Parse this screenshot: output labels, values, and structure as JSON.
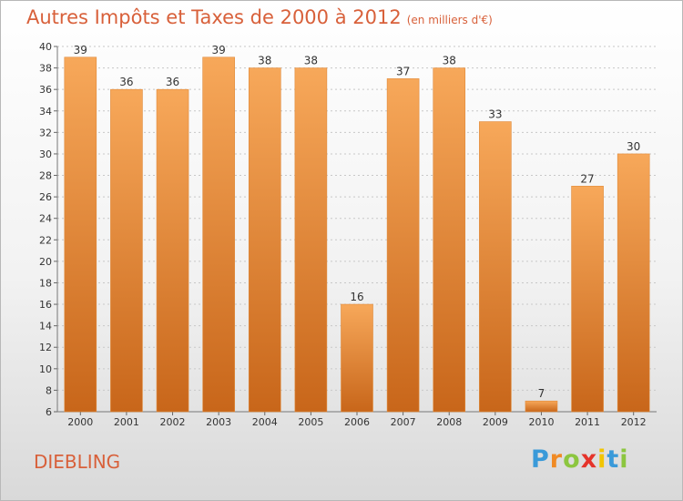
{
  "chart_data": {
    "type": "bar",
    "title": "Autres Impôts et Taxes de 2000 à 2012",
    "subtitle": "(en milliers d'€)",
    "categories": [
      "2000",
      "2001",
      "2002",
      "2003",
      "2004",
      "2005",
      "2006",
      "2007",
      "2008",
      "2009",
      "2010",
      "2011",
      "2012"
    ],
    "values": [
      39,
      36,
      36,
      39,
      38,
      38,
      16,
      37,
      38,
      33,
      7,
      27,
      30
    ],
    "ylim": [
      6,
      40
    ],
    "yticks": [
      6,
      8,
      10,
      12,
      14,
      16,
      18,
      20,
      22,
      24,
      26,
      28,
      30,
      32,
      34,
      36,
      38,
      40
    ],
    "grid": true,
    "bar_color_top": "#f7a85a",
    "bar_color_bottom": "#c8661a"
  },
  "location": "DIEBLING",
  "logo": {
    "letters": [
      "P",
      "r",
      "o",
      "x",
      "i",
      "t",
      "i"
    ],
    "colors": [
      "#3a9ad9",
      "#f08a24",
      "#8cc63f",
      "#e5332a",
      "#f2c500",
      "#3a9ad9",
      "#8cc63f"
    ]
  },
  "colors": {
    "title": "#d8603a",
    "grid": "#c8c8c8"
  }
}
